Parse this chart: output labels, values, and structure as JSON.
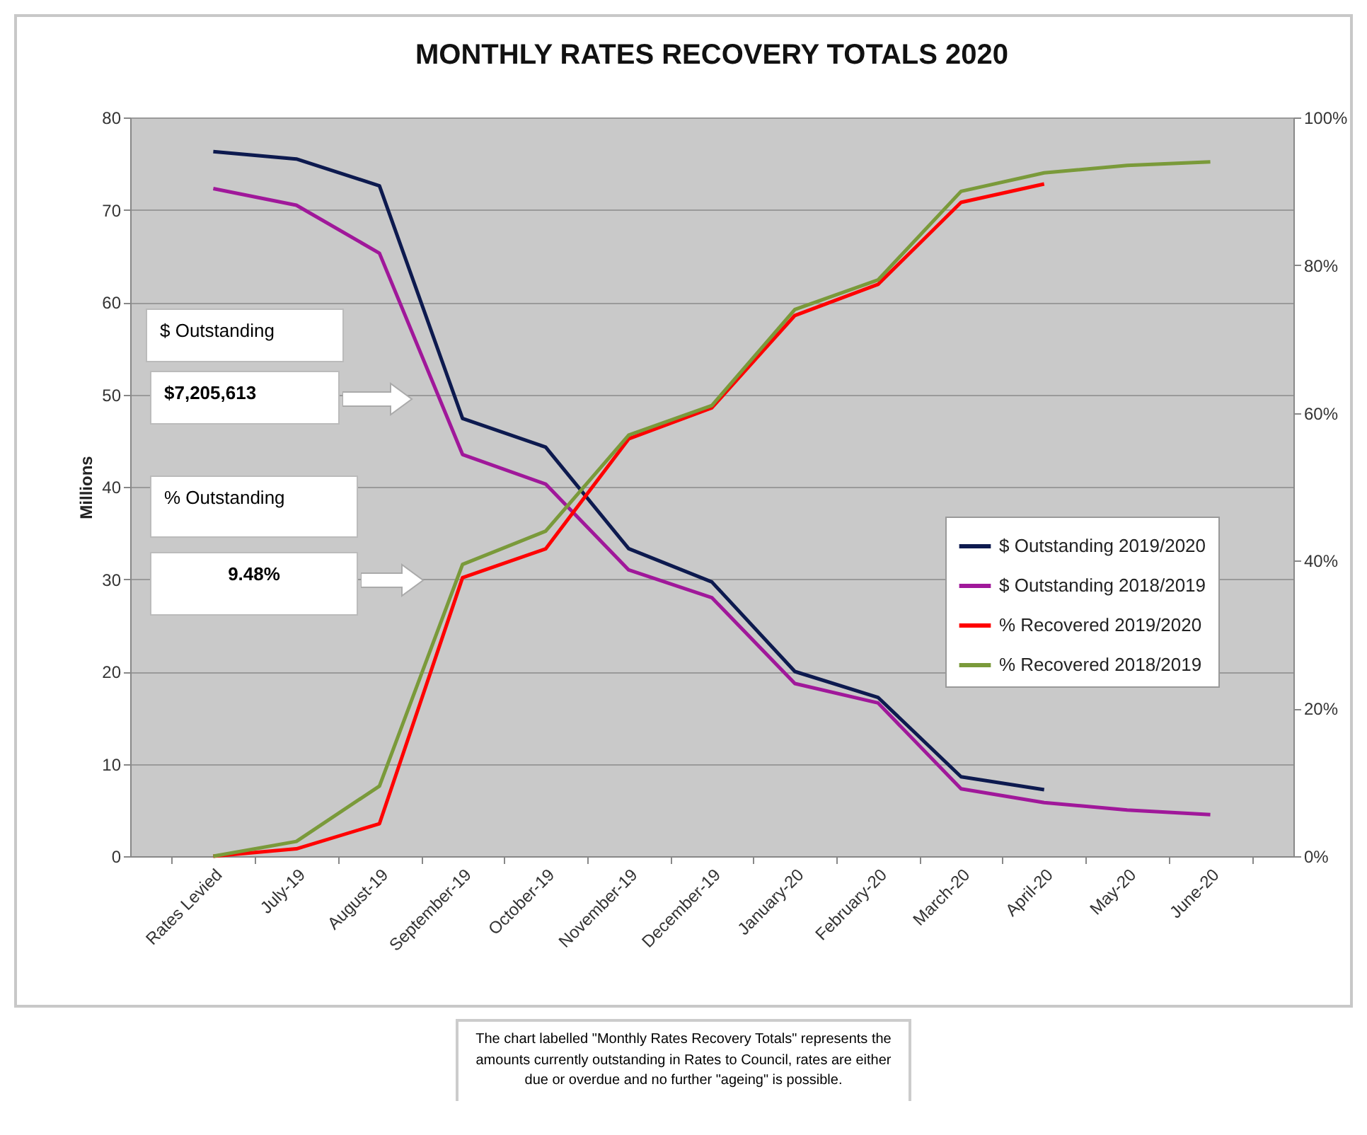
{
  "chart_data": {
    "type": "line",
    "title": "MONTHLY RATES RECOVERY TOTALS 2020",
    "ylabel": "Millions",
    "categories": [
      "Rates Levied",
      "July-19",
      "August-19",
      "September-19",
      "October-19",
      "November-19",
      "December-19",
      "January-20",
      "February-20",
      "March-20",
      "April-20",
      "May-20",
      "June-20"
    ],
    "series": [
      {
        "name": "$ Outstanding 2019/2020",
        "color": "#0d1a4f",
        "values": [
          76.3,
          75.5,
          72.6,
          47.4,
          44.3,
          33.3,
          29.7,
          20.0,
          17.2,
          8.6,
          7.2,
          null,
          null
        ]
      },
      {
        "name": "$ Outstanding 2018/2019",
        "color": "#a0189a",
        "values": [
          72.3,
          70.5,
          65.3,
          43.5,
          40.3,
          31.0,
          28.0,
          18.7,
          16.6,
          7.3,
          5.8,
          5.0,
          4.5
        ]
      },
      {
        "name": "% Recovered 2019/2020",
        "color": "#ff0000",
        "axis": "y2",
        "values": [
          0,
          1,
          4.4,
          37.7,
          41.6,
          56.5,
          60.7,
          73.2,
          77.4,
          88.5,
          91,
          null,
          null
        ]
      },
      {
        "name": "% Recovered 2018/2019",
        "color": "#7a9a3a",
        "axis": "y2",
        "values": [
          0,
          2,
          9.5,
          39.5,
          44,
          57,
          61,
          74,
          78,
          90,
          92.5,
          93.5,
          94
        ]
      }
    ],
    "ylim": [
      0,
      80
    ],
    "yticks": [
      0,
      10,
      20,
      30,
      40,
      50,
      60,
      70,
      80
    ],
    "y2lim": [
      0,
      100
    ],
    "y2ticks": [
      {
        "value": 0,
        "label": "0%"
      },
      {
        "value": 20,
        "label": "20%"
      },
      {
        "value": 40,
        "label": "40%"
      },
      {
        "value": 60,
        "label": "60%"
      },
      {
        "value": 80,
        "label": "80%"
      },
      {
        "value": 100,
        "label": "100%"
      }
    ],
    "grid": "y",
    "legend": "right",
    "marker": "none",
    "line_style": "solid",
    "annotations": [
      "$ Outstanding",
      "$7,205,613",
      "% Outstanding",
      "9.48%",
      "The chart labelled \"Monthly Rates Recovery Totals\" represents the  amounts currently outstanding in Rates to Council, rates are either due or overdue and no further \"ageing\" is possible."
    ]
  }
}
